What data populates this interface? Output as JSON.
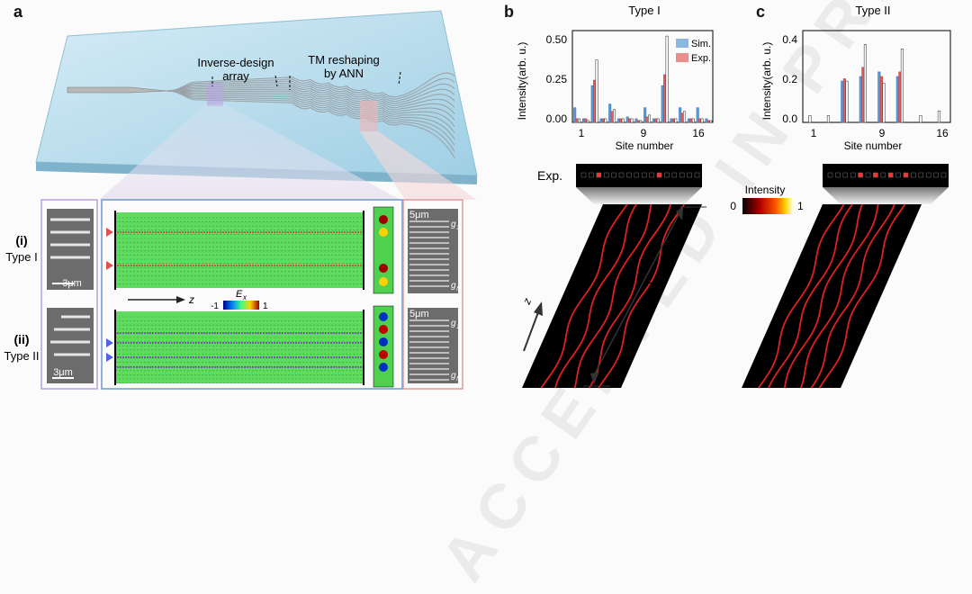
{
  "panels": {
    "a": "a",
    "b": "b",
    "c": "c"
  },
  "device": {
    "label_array_line1": "Inverse-design",
    "label_array_line2": "array",
    "label_ann_line1": "TM reshaping",
    "label_ann_line2": "by ANN"
  },
  "insets": {
    "row1_roman": "(i)",
    "row1_type": "Type I",
    "row2_roman": "(ii)",
    "row2_type": "Type II",
    "scale_3um": "3μm",
    "scale_5um": "5μm",
    "g1": "g",
    "g1_sub": "1",
    "gN": "g",
    "gN_sub": "N",
    "axis_z": "z",
    "field_label": "E",
    "field_sub": "x",
    "field_min": "-1",
    "field_max": "1"
  },
  "colors": {
    "sim": "#5b9bd5",
    "exp": "#e06060",
    "slab": "#b9dcec",
    "field_bg": "#5fdc5f"
  },
  "bottom": {
    "exp_label": "Exp.",
    "intensity_label": "Intensity",
    "intensity_min": "0",
    "intensity_max": "1",
    "z_label": "z",
    "L_label": "L"
  },
  "chart_data": [
    {
      "type": "bar",
      "title": "Type I",
      "xlabel": "Site number",
      "ylabel": "Intensity(arb. u.)",
      "xticks": [
        "1",
        "9",
        "16"
      ],
      "yticks": [
        "0.00",
        "0.25",
        "0.50"
      ],
      "ylim": [
        0,
        0.5
      ],
      "legend": [
        "Sim.",
        "Exp."
      ],
      "legend_position": "top-right",
      "categories": [
        1,
        2,
        3,
        4,
        5,
        6,
        7,
        8,
        9,
        10,
        11,
        12,
        13,
        14,
        15,
        16
      ],
      "series": [
        {
          "name": "Sim.",
          "values": [
            0.08,
            0.02,
            0.2,
            0.02,
            0.1,
            0.02,
            0.03,
            0.02,
            0.08,
            0.02,
            0.2,
            0.02,
            0.08,
            0.02,
            0.08,
            0.02
          ]
        },
        {
          "name": "Exp.",
          "values": [
            0.02,
            0.02,
            0.23,
            0.02,
            0.06,
            0.02,
            0.02,
            0.01,
            0.03,
            0.02,
            0.26,
            0.02,
            0.05,
            0.02,
            0.02,
            0.01
          ]
        },
        {
          "name": "",
          "values": [
            0.02,
            0.01,
            0.34,
            0.02,
            0.07,
            0.02,
            0.02,
            0.01,
            0.04,
            0.02,
            0.47,
            0.02,
            0.06,
            0.02,
            0.02,
            0.01
          ]
        }
      ]
    },
    {
      "type": "bar",
      "title": "Type II",
      "xlabel": "Site number",
      "ylabel": "Intensity(arb. u.)",
      "xticks": [
        "1",
        "9",
        "16"
      ],
      "yticks": [
        "0.0",
        "0.2",
        "0.4"
      ],
      "ylim": [
        0,
        0.4
      ],
      "categories": [
        1,
        2,
        3,
        4,
        5,
        6,
        7,
        8,
        9,
        10,
        11,
        12,
        13,
        14,
        15,
        16
      ],
      "series": [
        {
          "name": "Sim.",
          "values": [
            0.0,
            0.0,
            0.0,
            0.0,
            0.18,
            0.0,
            0.2,
            0.0,
            0.22,
            0.0,
            0.2,
            0.0,
            0.0,
            0.0,
            0.0,
            0.0
          ]
        },
        {
          "name": "Exp.",
          "values": [
            0.0,
            0.0,
            0.0,
            0.0,
            0.19,
            0.0,
            0.24,
            0.0,
            0.2,
            0.0,
            0.22,
            0.0,
            0.0,
            0.0,
            0.0,
            0.0
          ]
        },
        {
          "name": "",
          "values": [
            0.03,
            0.0,
            0.03,
            0.0,
            0.18,
            0.0,
            0.34,
            0.0,
            0.17,
            0.0,
            0.32,
            0.0,
            0.03,
            0.0,
            0.05,
            0.0
          ]
        }
      ]
    }
  ]
}
